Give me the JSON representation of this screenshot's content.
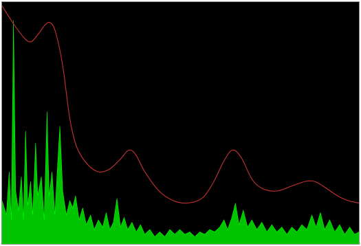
{
  "chart_data": {
    "type": "area",
    "title": "",
    "xlabel": "",
    "ylabel": "",
    "grid": false,
    "legend": "none",
    "xlim": [
      0,
      1
    ],
    "ylim": [
      0,
      1
    ],
    "colors": {
      "background": "#000000",
      "spectrum_fill": "#00c400",
      "spectrum_edge": "#00ff00",
      "envelope_line": "#c83232",
      "frame": "#8a8a8a"
    },
    "series": [
      {
        "kind": "area",
        "points": [
          [
            0.0,
            0.18
          ],
          [
            0.012,
            0.12
          ],
          [
            0.02,
            0.3
          ],
          [
            0.026,
            0.1
          ],
          [
            0.032,
            0.93
          ],
          [
            0.038,
            0.22
          ],
          [
            0.046,
            0.14
          ],
          [
            0.054,
            0.28
          ],
          [
            0.06,
            0.1
          ],
          [
            0.066,
            0.47
          ],
          [
            0.072,
            0.16
          ],
          [
            0.08,
            0.26
          ],
          [
            0.086,
            0.12
          ],
          [
            0.094,
            0.42
          ],
          [
            0.1,
            0.2
          ],
          [
            0.11,
            0.28
          ],
          [
            0.118,
            0.1
          ],
          [
            0.126,
            0.55
          ],
          [
            0.132,
            0.2
          ],
          [
            0.14,
            0.3
          ],
          [
            0.148,
            0.12
          ],
          [
            0.156,
            0.34
          ],
          [
            0.162,
            0.49
          ],
          [
            0.17,
            0.22
          ],
          [
            0.18,
            0.12
          ],
          [
            0.19,
            0.18
          ],
          [
            0.198,
            0.15
          ],
          [
            0.206,
            0.2
          ],
          [
            0.216,
            0.1
          ],
          [
            0.226,
            0.15
          ],
          [
            0.236,
            0.08
          ],
          [
            0.248,
            0.12
          ],
          [
            0.258,
            0.06
          ],
          [
            0.27,
            0.1
          ],
          [
            0.282,
            0.07
          ],
          [
            0.292,
            0.13
          ],
          [
            0.302,
            0.06
          ],
          [
            0.312,
            0.09
          ],
          [
            0.322,
            0.19
          ],
          [
            0.332,
            0.07
          ],
          [
            0.342,
            0.11
          ],
          [
            0.352,
            0.06
          ],
          [
            0.364,
            0.09
          ],
          [
            0.376,
            0.05
          ],
          [
            0.388,
            0.08
          ],
          [
            0.4,
            0.04
          ],
          [
            0.414,
            0.06
          ],
          [
            0.428,
            0.03
          ],
          [
            0.442,
            0.05
          ],
          [
            0.456,
            0.03
          ],
          [
            0.47,
            0.06
          ],
          [
            0.484,
            0.04
          ],
          [
            0.498,
            0.06
          ],
          [
            0.512,
            0.04
          ],
          [
            0.526,
            0.05
          ],
          [
            0.54,
            0.03
          ],
          [
            0.554,
            0.05
          ],
          [
            0.568,
            0.04
          ],
          [
            0.582,
            0.06
          ],
          [
            0.596,
            0.05
          ],
          [
            0.61,
            0.07
          ],
          [
            0.622,
            0.1
          ],
          [
            0.632,
            0.06
          ],
          [
            0.644,
            0.11
          ],
          [
            0.654,
            0.17
          ],
          [
            0.664,
            0.08
          ],
          [
            0.676,
            0.14
          ],
          [
            0.688,
            0.07
          ],
          [
            0.7,
            0.1
          ],
          [
            0.714,
            0.06
          ],
          [
            0.728,
            0.09
          ],
          [
            0.742,
            0.05
          ],
          [
            0.756,
            0.08
          ],
          [
            0.77,
            0.05
          ],
          [
            0.784,
            0.07
          ],
          [
            0.798,
            0.04
          ],
          [
            0.812,
            0.07
          ],
          [
            0.826,
            0.05
          ],
          [
            0.84,
            0.08
          ],
          [
            0.854,
            0.06
          ],
          [
            0.868,
            0.12
          ],
          [
            0.88,
            0.07
          ],
          [
            0.892,
            0.13
          ],
          [
            0.904,
            0.06
          ],
          [
            0.918,
            0.1
          ],
          [
            0.932,
            0.05
          ],
          [
            0.946,
            0.08
          ],
          [
            0.96,
            0.04
          ],
          [
            0.974,
            0.07
          ],
          [
            0.988,
            0.04
          ],
          [
            1.0,
            0.05
          ]
        ]
      },
      {
        "kind": "line",
        "points": [
          [
            0.0,
            0.99
          ],
          [
            0.03,
            0.92
          ],
          [
            0.06,
            0.86
          ],
          [
            0.08,
            0.84
          ],
          [
            0.1,
            0.87
          ],
          [
            0.12,
            0.91
          ],
          [
            0.135,
            0.92
          ],
          [
            0.15,
            0.88
          ],
          [
            0.17,
            0.74
          ],
          [
            0.19,
            0.52
          ],
          [
            0.21,
            0.4
          ],
          [
            0.24,
            0.33
          ],
          [
            0.27,
            0.3
          ],
          [
            0.3,
            0.31
          ],
          [
            0.33,
            0.35
          ],
          [
            0.355,
            0.39
          ],
          [
            0.375,
            0.37
          ],
          [
            0.4,
            0.3
          ],
          [
            0.44,
            0.22
          ],
          [
            0.48,
            0.18
          ],
          [
            0.52,
            0.17
          ],
          [
            0.56,
            0.19
          ],
          [
            0.59,
            0.25
          ],
          [
            0.62,
            0.34
          ],
          [
            0.645,
            0.39
          ],
          [
            0.67,
            0.36
          ],
          [
            0.7,
            0.27
          ],
          [
            0.73,
            0.23
          ],
          [
            0.77,
            0.22
          ],
          [
            0.81,
            0.24
          ],
          [
            0.85,
            0.26
          ],
          [
            0.875,
            0.26
          ],
          [
            0.9,
            0.24
          ],
          [
            0.94,
            0.2
          ],
          [
            0.97,
            0.18
          ],
          [
            1.0,
            0.17
          ]
        ]
      }
    ]
  }
}
